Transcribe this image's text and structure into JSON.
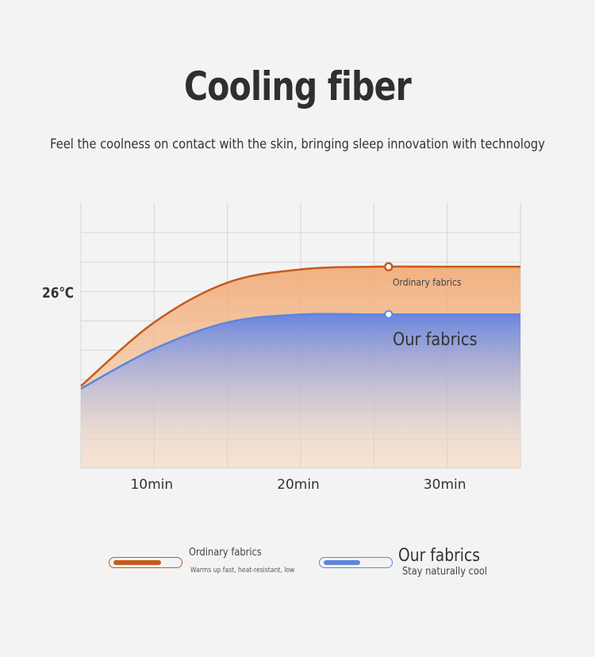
{
  "header": {
    "title": "Cooling fiber",
    "subtitle": "Feel the coolness on contact with the skin, bringing sleep innovation with technology"
  },
  "colors": {
    "ordinary": "#c85a1c",
    "ours": "#5b86e0",
    "grid": "#d6d6d6"
  },
  "chart_data": {
    "type": "area",
    "x": [
      5,
      10,
      15,
      20,
      25,
      30,
      35
    ],
    "xticks": [
      "10min",
      "20min",
      "30min"
    ],
    "xtick_values": [
      10,
      20,
      30
    ],
    "ytick_label": "26℃",
    "series": [
      {
        "name": "Ordinary fabrics",
        "color": "#c85a1c",
        "values": [
          0.31,
          0.55,
          0.7,
          0.75,
          0.76,
          0.76,
          0.76
        ]
      },
      {
        "name": "Our fabrics",
        "color": "#5b86e0",
        "values": [
          0.3,
          0.45,
          0.55,
          0.58,
          0.58,
          0.58,
          0.58
        ]
      }
    ],
    "annotations": [
      {
        "series": 0,
        "text": "Ordinary fabrics"
      },
      {
        "series": 1,
        "text": "Our fabrics"
      }
    ]
  },
  "legend": {
    "ordinary": {
      "title": "Ordinary fabrics",
      "desc": "Warms up fast, heat-resistant, low"
    },
    "ours": {
      "title": "Our fabrics",
      "desc": "Stay naturally cool"
    }
  }
}
